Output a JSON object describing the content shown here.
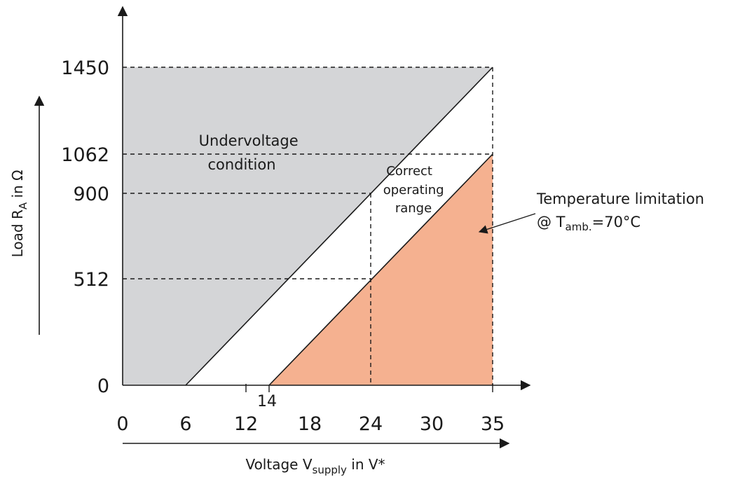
{
  "chart_data": {
    "type": "area",
    "xlabel_main": "Voltage V",
    "xlabel_sub": "supply",
    "xlabel_tail": " in V*",
    "ylabel_main": "Load R",
    "ylabel_sub": "A",
    "ylabel_tail": " in Ω",
    "xlim": [
      0,
      35
    ],
    "ylim": [
      0,
      1450
    ],
    "x_ticks": [
      "0",
      "6",
      "12",
      "18",
      "24",
      "30",
      "35"
    ],
    "x_extra_tick": "14",
    "y_ticks": [
      "0",
      "512",
      "900",
      "1062",
      "1450"
    ],
    "series": [
      {
        "points": [
          [
            6,
            0
          ],
          [
            35,
            1450
          ]
        ],
        "fill": "#d4d5d7"
      },
      {
        "points": [
          [
            14,
            0
          ],
          [
            35,
            1062
          ]
        ],
        "fill": "#f5b190"
      }
    ],
    "reference_points": [
      {
        "x": 24,
        "y": 900
      },
      {
        "x": 24,
        "y": 512
      },
      {
        "x": 35,
        "y": 1062
      },
      {
        "x": 35,
        "y": 1450
      }
    ],
    "regions": {
      "undervoltage": [
        "Undervoltage",
        "condition"
      ],
      "correct": [
        "Correct",
        "operating",
        "range"
      ]
    },
    "annotation": {
      "line1": "Temperature limitation",
      "line2_prefix": "@ T",
      "line2_sub": "amb.",
      "line2_tail": "=70°C"
    },
    "colors": {
      "undervoltage": "#d4d5d7",
      "temperature": "#f5b190",
      "line": "#1a1a1a"
    }
  }
}
